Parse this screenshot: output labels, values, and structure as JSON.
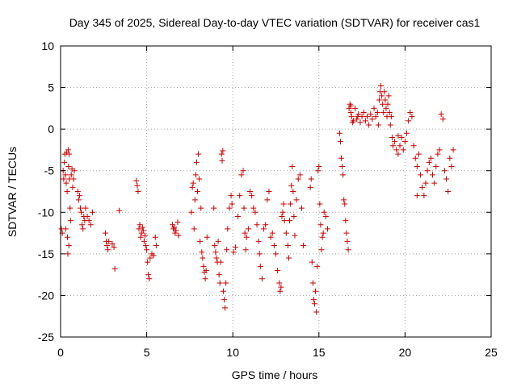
{
  "chart_data": {
    "type": "scatter",
    "title": "Day 345 of 2025, Sidereal Day-to-day VTEC variation (SDTVAR) for receiver cas1",
    "xlabel": "GPS time / hours",
    "ylabel": "SDTVAR / TECUs",
    "xlim": [
      0,
      25
    ],
    "ylim": [
      -25,
      10
    ],
    "xticks": [
      0,
      5,
      10,
      15,
      20,
      25
    ],
    "yticks": [
      -25,
      -20,
      -15,
      -10,
      -5,
      0,
      5,
      10
    ],
    "xtick_labels": [
      "0",
      "5",
      "10",
      "15",
      "20",
      "25"
    ],
    "ytick_labels": [
      "-25",
      "-20",
      "-15",
      "-10",
      "-5",
      "0",
      "5",
      "10"
    ],
    "grid": true,
    "marker": "+",
    "series_color": "#cc0000",
    "series": [
      {
        "name": "SDTVAR",
        "points": [
          [
            0.05,
            -12.0
          ],
          [
            0.1,
            -12.5
          ],
          [
            0.15,
            -5.0
          ],
          [
            0.18,
            -6.0
          ],
          [
            0.22,
            -4.0
          ],
          [
            0.25,
            -3.0
          ],
          [
            0.28,
            -5.5
          ],
          [
            0.3,
            -12.0
          ],
          [
            0.33,
            -6.5
          ],
          [
            0.36,
            -2.8
          ],
          [
            0.38,
            -7.5
          ],
          [
            0.4,
            -13.0
          ],
          [
            0.42,
            -15.0
          ],
          [
            0.44,
            -2.5
          ],
          [
            0.46,
            -4.5
          ],
          [
            0.48,
            -14.0
          ],
          [
            0.5,
            -3.0
          ],
          [
            0.52,
            -6.0
          ],
          [
            0.55,
            -9.5
          ],
          [
            0.58,
            -11.0
          ],
          [
            0.62,
            -5.5
          ],
          [
            0.66,
            -4.8
          ],
          [
            0.7,
            -7.0
          ],
          [
            0.75,
            -6.0
          ],
          [
            0.8,
            -5.0
          ],
          [
            1.0,
            -7.5
          ],
          [
            1.05,
            -8.5
          ],
          [
            1.1,
            -8.0
          ],
          [
            1.15,
            -9.5
          ],
          [
            1.2,
            -10.0
          ],
          [
            1.25,
            -11.5
          ],
          [
            1.3,
            -12.0
          ],
          [
            1.35,
            -10.5
          ],
          [
            1.4,
            -11.0
          ],
          [
            1.45,
            -9.5
          ],
          [
            1.55,
            -10.5
          ],
          [
            1.65,
            -11.0
          ],
          [
            1.75,
            -11.5
          ],
          [
            1.85,
            -10.0
          ],
          [
            2.6,
            -12.5
          ],
          [
            2.65,
            -13.5
          ],
          [
            2.7,
            -14.0
          ],
          [
            2.75,
            -14.5
          ],
          [
            2.8,
            -13.5
          ],
          [
            3.0,
            -13.8
          ],
          [
            3.1,
            -14.2
          ],
          [
            3.15,
            -16.8
          ],
          [
            3.4,
            -9.8
          ],
          [
            4.4,
            -6.2
          ],
          [
            4.45,
            -6.8
          ],
          [
            4.5,
            -7.5
          ],
          [
            4.55,
            -12.0
          ],
          [
            4.6,
            -11.5
          ],
          [
            4.65,
            -13.0
          ],
          [
            4.7,
            -12.5
          ],
          [
            4.75,
            -11.8
          ],
          [
            4.8,
            -12.2
          ],
          [
            4.85,
            -13.5
          ],
          [
            4.9,
            -12.8
          ],
          [
            4.95,
            -14.0
          ],
          [
            5.0,
            -14.5
          ],
          [
            5.05,
            -16.0
          ],
          [
            5.1,
            -17.5
          ],
          [
            5.15,
            -18.0
          ],
          [
            5.2,
            -15.5
          ],
          [
            5.3,
            -15.0
          ],
          [
            5.4,
            -15.2
          ],
          [
            5.5,
            -13.0
          ],
          [
            5.55,
            -14.0
          ],
          [
            6.5,
            -11.5
          ],
          [
            6.55,
            -12.0
          ],
          [
            6.6,
            -11.8
          ],
          [
            6.65,
            -12.5
          ],
          [
            6.7,
            -12.2
          ],
          [
            6.8,
            -11.2
          ],
          [
            6.85,
            -12.8
          ],
          [
            7.6,
            -10.0
          ],
          [
            7.65,
            -7.0
          ],
          [
            7.7,
            -6.5
          ],
          [
            7.75,
            -12.0
          ],
          [
            7.8,
            -8.5
          ],
          [
            7.85,
            -5.5
          ],
          [
            7.9,
            -4.0
          ],
          [
            7.95,
            -7.5
          ],
          [
            8.0,
            -3.0
          ],
          [
            8.05,
            -6.0
          ],
          [
            8.1,
            -13.5
          ],
          [
            8.15,
            -9.5
          ],
          [
            8.2,
            -14.8
          ],
          [
            8.25,
            -15.5
          ],
          [
            8.3,
            -16.5
          ],
          [
            8.35,
            -17.2
          ],
          [
            8.4,
            -18.0
          ],
          [
            8.45,
            -17.0
          ],
          [
            8.5,
            -13.0
          ],
          [
            8.9,
            -9.5
          ],
          [
            8.95,
            -14.0
          ],
          [
            9.0,
            -14.8
          ],
          [
            9.05,
            -15.5
          ],
          [
            9.1,
            -16.0
          ],
          [
            9.15,
            -13.5
          ],
          [
            9.2,
            -17.5
          ],
          [
            9.25,
            -18.5
          ],
          [
            9.3,
            -16.0
          ],
          [
            9.35,
            -3.0
          ],
          [
            9.38,
            -3.8
          ],
          [
            9.42,
            -2.6
          ],
          [
            9.45,
            -19.5
          ],
          [
            9.5,
            -20.5
          ],
          [
            9.55,
            -21.5
          ],
          [
            9.6,
            -18.5
          ],
          [
            9.65,
            -14.5
          ],
          [
            9.7,
            -12.0
          ],
          [
            9.8,
            -9.5
          ],
          [
            9.9,
            -8.0
          ],
          [
            9.95,
            -9.0
          ],
          [
            10.05,
            -14.8
          ],
          [
            10.15,
            -14.2
          ],
          [
            10.3,
            -10.5
          ],
          [
            10.4,
            -8.0
          ],
          [
            10.5,
            -5.5
          ],
          [
            10.6,
            -5.0
          ],
          [
            10.65,
            -9.5
          ],
          [
            10.7,
            -12.5
          ],
          [
            10.75,
            -14.5
          ],
          [
            10.8,
            -13.0
          ],
          [
            10.9,
            -12.0
          ],
          [
            11.0,
            -7.5
          ],
          [
            11.1,
            -8.0
          ],
          [
            11.2,
            -9.5
          ],
          [
            11.3,
            -10.0
          ],
          [
            11.4,
            -11.5
          ],
          [
            11.5,
            -13.5
          ],
          [
            11.55,
            -15.0
          ],
          [
            11.6,
            -16.5
          ],
          [
            11.7,
            -18.0
          ],
          [
            11.8,
            -12.0
          ],
          [
            11.9,
            -11.5
          ],
          [
            12.0,
            -8.5
          ],
          [
            12.1,
            -7.5
          ],
          [
            12.2,
            -13.0
          ],
          [
            12.3,
            -12.5
          ],
          [
            12.4,
            -14.0
          ],
          [
            12.5,
            -15.0
          ],
          [
            12.6,
            -17.0
          ],
          [
            12.7,
            -18.5
          ],
          [
            12.75,
            -19.5
          ],
          [
            12.8,
            -19.0
          ],
          [
            12.85,
            -10.5
          ],
          [
            12.9,
            -10.0
          ],
          [
            12.95,
            -9.0
          ],
          [
            13.0,
            -11.0
          ],
          [
            13.1,
            -12.5
          ],
          [
            13.2,
            -14.0
          ],
          [
            13.25,
            -15.5
          ],
          [
            13.3,
            -11.0
          ],
          [
            13.35,
            -9.0
          ],
          [
            13.4,
            -6.8
          ],
          [
            13.45,
            -4.5
          ],
          [
            13.5,
            -7.5
          ],
          [
            13.55,
            -10.5
          ],
          [
            13.6,
            -12.8
          ],
          [
            13.7,
            -8.5
          ],
          [
            13.8,
            -6.0
          ],
          [
            13.9,
            -5.5
          ],
          [
            14.0,
            -9.5
          ],
          [
            14.1,
            -14.0
          ],
          [
            14.5,
            -7.0
          ],
          [
            14.55,
            -6.0
          ],
          [
            14.6,
            -16.0
          ],
          [
            14.65,
            -18.5
          ],
          [
            14.7,
            -20.5
          ],
          [
            14.75,
            -21.0
          ],
          [
            14.8,
            -19.5
          ],
          [
            14.85,
            -22.0
          ],
          [
            14.9,
            -16.5
          ],
          [
            14.95,
            -5.0
          ],
          [
            15.0,
            -4.5
          ],
          [
            15.05,
            -9.0
          ],
          [
            15.1,
            -11.5
          ],
          [
            15.15,
            -14.5
          ],
          [
            15.2,
            -13.0
          ],
          [
            15.25,
            -12.5
          ],
          [
            15.3,
            -10.0
          ],
          [
            15.4,
            -10.5
          ],
          [
            15.5,
            -12.0
          ],
          [
            16.2,
            -0.5
          ],
          [
            16.25,
            -1.5
          ],
          [
            16.3,
            -3.5
          ],
          [
            16.35,
            -4.5
          ],
          [
            16.4,
            -5.5
          ],
          [
            16.45,
            -8.5
          ],
          [
            16.5,
            -9.0
          ],
          [
            16.55,
            -11.0
          ],
          [
            16.6,
            -12.5
          ],
          [
            16.65,
            -13.5
          ],
          [
            16.7,
            -14.5
          ],
          [
            16.75,
            2.5
          ],
          [
            16.8,
            3.0
          ],
          [
            16.85,
            2.0
          ],
          [
            16.9,
            1.5
          ],
          [
            16.95,
            0.8
          ],
          [
            17.0,
            1.0
          ],
          [
            17.1,
            2.5
          ],
          [
            17.2,
            1.2
          ],
          [
            17.3,
            1.8
          ],
          [
            17.4,
            0.8
          ],
          [
            17.5,
            1.5
          ],
          [
            17.6,
            2.0
          ],
          [
            17.7,
            1.0
          ],
          [
            17.8,
            1.5
          ],
          [
            17.9,
            0.5
          ],
          [
            18.0,
            1.8
          ],
          [
            18.1,
            1.2
          ],
          [
            18.2,
            2.5
          ],
          [
            18.3,
            1.5
          ],
          [
            18.4,
            2.0
          ],
          [
            18.5,
            3.5
          ],
          [
            18.55,
            4.5
          ],
          [
            18.6,
            5.2
          ],
          [
            18.65,
            4.0
          ],
          [
            18.7,
            3.0
          ],
          [
            18.75,
            2.0
          ],
          [
            18.8,
            4.5
          ],
          [
            18.85,
            3.5
          ],
          [
            18.9,
            2.5
          ],
          [
            18.95,
            1.5
          ],
          [
            19.0,
            3.0
          ],
          [
            19.05,
            4.0
          ],
          [
            19.1,
            2.0
          ],
          [
            19.15,
            0.5
          ],
          [
            19.2,
            1.5
          ],
          [
            19.25,
            -1.0
          ],
          [
            19.3,
            -2.0
          ],
          [
            19.4,
            -1.5
          ],
          [
            19.5,
            -2.5
          ],
          [
            19.6,
            -3.0
          ],
          [
            19.7,
            -2.0
          ],
          [
            19.8,
            -1.0
          ],
          [
            19.9,
            -2.5
          ],
          [
            20.0,
            -1.5
          ],
          [
            20.1,
            -0.5
          ],
          [
            20.2,
            1.0
          ],
          [
            20.3,
            2.0
          ],
          [
            20.4,
            1.5
          ],
          [
            20.5,
            -2.0
          ],
          [
            20.6,
            -3.5
          ],
          [
            20.7,
            -4.5
          ],
          [
            20.8,
            -3.0
          ],
          [
            20.9,
            -5.5
          ],
          [
            21.0,
            -7.0
          ],
          [
            21.1,
            -8.0
          ],
          [
            21.2,
            -6.5
          ],
          [
            21.3,
            -5.0
          ],
          [
            21.4,
            -4.0
          ],
          [
            21.5,
            -3.5
          ],
          [
            21.6,
            -5.5
          ],
          [
            21.7,
            -6.5
          ],
          [
            21.8,
            -4.5
          ],
          [
            21.9,
            -3.0
          ],
          [
            22.0,
            -2.5
          ],
          [
            22.1,
            1.8
          ],
          [
            22.2,
            1.2
          ],
          [
            22.3,
            -5.0
          ],
          [
            22.4,
            -6.0
          ],
          [
            22.5,
            -7.5
          ],
          [
            22.6,
            -3.5
          ],
          [
            22.7,
            -4.5
          ],
          [
            22.8,
            -2.5
          ],
          [
            20.7,
            -8.0
          ],
          [
            19.6,
            -0.8
          ],
          [
            18.45,
            0.5
          ],
          [
            17.25,
            1.5
          ],
          [
            16.85,
            2.8
          ]
        ]
      }
    ]
  }
}
